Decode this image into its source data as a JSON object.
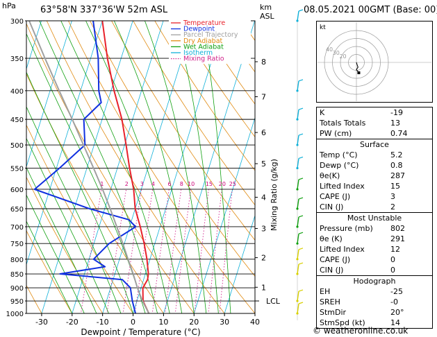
{
  "header": {
    "location": "63°58'N  337°36'W  52m  ASL",
    "datetime": "08.05.2021  00GMT  (Base: 00)",
    "left_unit": "hPa",
    "right_unit_1": "km",
    "right_unit_2": "ASL"
  },
  "chart_data": {
    "type": "skew-t log-p",
    "title": "63°58'N  337°36'W  52m  ASL",
    "xlabel": "Dewpoint / Temperature (°C)",
    "ylabel": "hPa",
    "right_axis_label": "Mixing Ratio (g/kg)",
    "xlim": [
      -35,
      40
    ],
    "ylim": [
      1000,
      300
    ],
    "skew_per_log10_p": 57.2,
    "x_ticks": [
      -30,
      -20,
      -10,
      0,
      10,
      20,
      30,
      40
    ],
    "pressure_levels": [
      300,
      350,
      400,
      450,
      500,
      550,
      600,
      650,
      700,
      750,
      800,
      850,
      900,
      950,
      1000
    ],
    "km_ticks": [
      {
        "label": "8",
        "p": 355
      },
      {
        "label": "7",
        "p": 410
      },
      {
        "label": "6",
        "p": 475
      },
      {
        "label": "5",
        "p": 540
      },
      {
        "label": "4",
        "p": 620
      },
      {
        "label": "3",
        "p": 705
      },
      {
        "label": "2",
        "p": 795
      },
      {
        "label": "1",
        "p": 898
      }
    ],
    "lcl": {
      "label": "LCL",
      "p": 950
    },
    "mixing_ratios": [
      {
        "label": "1",
        "w": 1
      },
      {
        "label": "2",
        "w": 2
      },
      {
        "label": "3",
        "w": 3
      },
      {
        "label": "4",
        "w": 4
      },
      {
        "label": "6",
        "w": 6
      },
      {
        "label": "8",
        "w": 8
      },
      {
        "label": "10",
        "w": 10
      },
      {
        "label": "15",
        "w": 15
      },
      {
        "label": "20",
        "w": 20
      },
      {
        "label": "25",
        "w": 25
      }
    ],
    "mixing_ratio_label_p": 592,
    "dry_adiabats_theta_c": [
      -30,
      -20,
      -10,
      0,
      10,
      20,
      30,
      40,
      50,
      60,
      70,
      80,
      90,
      100,
      110,
      120,
      130,
      140
    ],
    "wet_adiabats_c": [
      -20,
      -16,
      -12,
      -8,
      -4,
      0,
      4,
      8,
      12,
      16,
      20,
      24,
      28,
      32
    ],
    "isotherms_c": [
      -100,
      -90,
      -80,
      -70,
      -60,
      -50,
      -40,
      -30,
      -20,
      -10,
      0,
      10,
      20,
      30,
      40
    ],
    "series": [
      {
        "name": "Temperature",
        "color": "#e8202a",
        "points": [
          [
            1000,
            5.2
          ],
          [
            950,
            2.0
          ],
          [
            900,
            0.6
          ],
          [
            870,
            1.3
          ],
          [
            850,
            1.0
          ],
          [
            800,
            -1.0
          ],
          [
            750,
            -3.5
          ],
          [
            700,
            -6.5
          ],
          [
            650,
            -10.0
          ],
          [
            600,
            -12.5
          ],
          [
            550,
            -16.0
          ],
          [
            500,
            -19.5
          ],
          [
            450,
            -23.5
          ],
          [
            400,
            -29.0
          ],
          [
            350,
            -34.5
          ],
          [
            300,
            -40.0
          ]
        ]
      },
      {
        "name": "Dewpoint",
        "color": "#1030e0",
        "points": [
          [
            1000,
            0.8
          ],
          [
            950,
            -1.5
          ],
          [
            900,
            -3.5
          ],
          [
            870,
            -7.0
          ],
          [
            850,
            -28.0
          ],
          [
            825,
            -14.0
          ],
          [
            800,
            -18.5
          ],
          [
            750,
            -15.0
          ],
          [
            700,
            -8.0
          ],
          [
            680,
            -11.0
          ],
          [
            650,
            -25.0
          ],
          [
            600,
            -45.0
          ],
          [
            550,
            -39.0
          ],
          [
            500,
            -33.0
          ],
          [
            450,
            -36.0
          ],
          [
            420,
            -32.0
          ],
          [
            400,
            -34.0
          ],
          [
            350,
            -37.5
          ],
          [
            300,
            -43.0
          ]
        ]
      },
      {
        "name": "Parcel Trajectory",
        "color": "#a0a0a0",
        "points": [
          [
            1000,
            5.2
          ],
          [
            950,
            1.8
          ],
          [
            900,
            -1.2
          ],
          [
            850,
            -4.0
          ],
          [
            800,
            -7.2
          ],
          [
            750,
            -10.5
          ],
          [
            700,
            -14.2
          ],
          [
            650,
            -18.2
          ],
          [
            600,
            -22.7
          ],
          [
            550,
            -27.8
          ],
          [
            500,
            -33.5
          ],
          [
            450,
            -39.8
          ],
          [
            400,
            -47.0
          ],
          [
            350,
            -55.0
          ],
          [
            300,
            -64.0
          ]
        ]
      }
    ],
    "legend": {
      "placement": "top-left",
      "items": [
        {
          "label": "Temperature",
          "color": "#e8202a",
          "style": "solid"
        },
        {
          "label": "Dewpoint",
          "color": "#1030e0",
          "style": "solid"
        },
        {
          "label": "Parcel Trajectory",
          "color": "#a0a0a0",
          "style": "solid"
        },
        {
          "label": "Dry Adiabat",
          "color": "#e08a10",
          "style": "solid"
        },
        {
          "label": "Wet Adiabat",
          "color": "#10a010",
          "style": "solid"
        },
        {
          "label": "Isotherm",
          "color": "#10b0d8",
          "style": "solid"
        },
        {
          "label": "Mixing Ratio",
          "color": "#d0208a",
          "style": "dotted"
        }
      ]
    },
    "colors": {
      "dry_adiabat": "#e08a10",
      "wet_adiabat": "#10a010",
      "isotherm": "#10b0d8",
      "mixing_ratio": "#d0208a",
      "mixing_ratio_label": "#cc0077",
      "grid": "#000000",
      "wind_high": "#10b0d8",
      "wind_mid": "#10a010",
      "wind_low": "#d8d000"
    },
    "wind_profile": [
      {
        "p": 300,
        "color_key": "wind_high"
      },
      {
        "p": 400,
        "color_key": "wind_high"
      },
      {
        "p": 450,
        "color_key": "wind_high"
      },
      {
        "p": 500,
        "color_key": "wind_high"
      },
      {
        "p": 550,
        "color_key": "wind_high"
      },
      {
        "p": 600,
        "color_key": "wind_mid"
      },
      {
        "p": 650,
        "color_key": "wind_mid"
      },
      {
        "p": 700,
        "color_key": "wind_mid"
      },
      {
        "p": 750,
        "color_key": "wind_mid"
      },
      {
        "p": 800,
        "color_key": "wind_low"
      },
      {
        "p": 850,
        "color_key": "wind_low"
      },
      {
        "p": 950,
        "color_key": "wind_low"
      },
      {
        "p": 1000,
        "color_key": "wind_low"
      }
    ]
  },
  "hodograph": {
    "label": "kt",
    "rings": [
      10,
      20,
      30,
      40
    ],
    "ring_labels": [
      {
        "text": "20",
        "ring": 20
      },
      {
        "text": "30",
        "ring": 30
      },
      {
        "text": "40",
        "ring": 40
      }
    ],
    "trace": [
      [
        0,
        0
      ],
      [
        1,
        -3
      ],
      [
        2,
        -6
      ],
      [
        0,
        -9
      ],
      [
        3,
        -13
      ]
    ]
  },
  "indices": {
    "k_label": "K",
    "k_value": "-19",
    "tt_label": "Totals Totals",
    "tt_value": "13",
    "pw_label": "PW (cm)",
    "pw_value": "0.74"
  },
  "surface": {
    "title": "Surface",
    "temp_label": "Temp (°C)",
    "temp_value": "5.2",
    "dewp_label": "Dewp (°C)",
    "dewp_value": "0.8",
    "theta_label": "θe(K)",
    "theta_value": "287",
    "li_label": "Lifted Index",
    "li_value": "15",
    "cape_label": "CAPE (J)",
    "cape_value": "3",
    "cin_label": "CIN (J)",
    "cin_value": "2"
  },
  "most_unstable": {
    "title": "Most Unstable",
    "pressure_label": "Pressure (mb)",
    "pressure_value": "802",
    "theta_label": "θe (K)",
    "theta_value": "291",
    "li_label": "Lifted Index",
    "li_value": "12",
    "cape_label": "CAPE (J)",
    "cape_value": "0",
    "cin_label": "CIN (J)",
    "cin_value": "0"
  },
  "hodograph_params": {
    "title": "Hodograph",
    "eh_label": "EH",
    "eh_value": "-25",
    "sreh_label": "SREH",
    "sreh_value": "-0",
    "stmdir_label": "StmDir",
    "stmdir_value": "20°",
    "stmspd_label": "StmSpd (kt)",
    "stmspd_value": "14"
  },
  "footer": {
    "copyright": "© weatheronline.co.uk"
  }
}
